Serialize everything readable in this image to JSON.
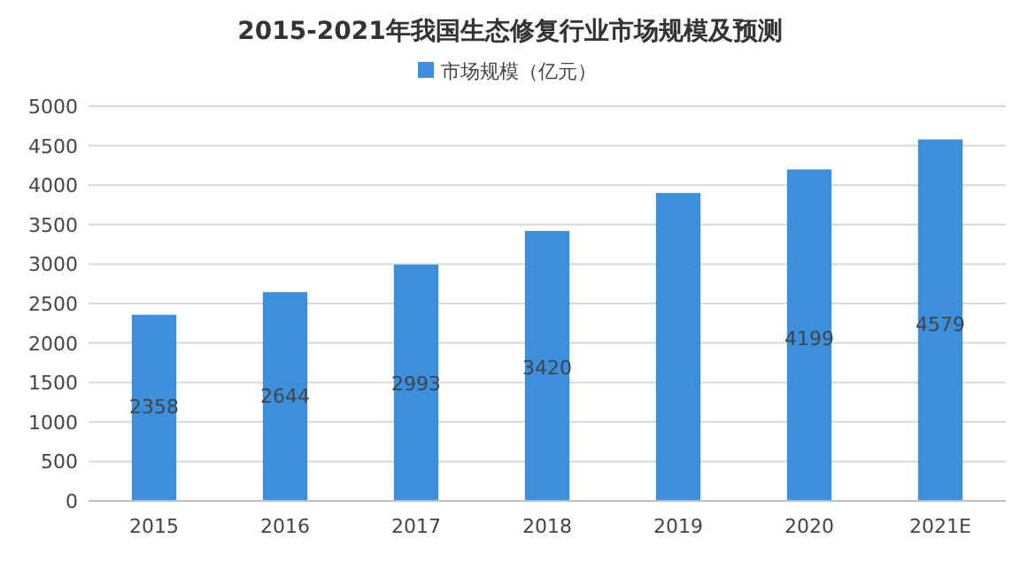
{
  "chart_data": {
    "type": "bar",
    "title": "2015-2021年我国生态修复行业市场规模及预测",
    "categories": [
      "2015",
      "2016",
      "2017",
      "2018",
      "2019",
      "2020",
      "2021E"
    ],
    "series": [
      {
        "name": "市场规模（亿元）",
        "color": "#3c8fdc",
        "values": [
          2358,
          2644,
          2993,
          3420,
          3900,
          4199,
          4579
        ]
      }
    ],
    "value_labels": [
      "2358",
      "2644",
      "2993",
      "3420",
      null,
      "4199",
      "4579"
    ],
    "ylim": [
      0,
      5000
    ],
    "yticks": [
      0,
      500,
      1000,
      1500,
      2000,
      2500,
      3000,
      3500,
      4000,
      4500,
      5000
    ],
    "grid": "y",
    "legend": "top"
  }
}
